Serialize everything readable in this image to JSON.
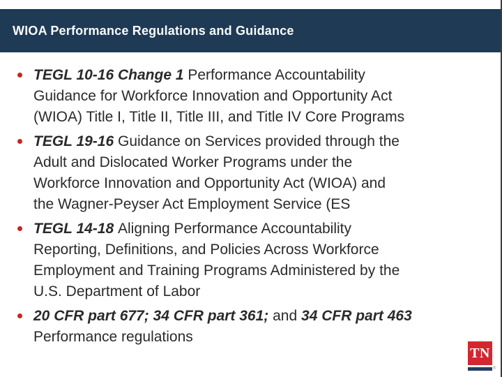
{
  "colors": {
    "header_bg": "#1f3a54",
    "header_text": "#fbfbfb",
    "body_text": "#2a2a2a",
    "bullet_dot": "#c9251f",
    "logo_red": "#d22730",
    "logo_navy": "#243e63",
    "edge_border": "#3c3c3c"
  },
  "header": {
    "title": "WIOA Performance Regulations and Guidance"
  },
  "bullets": [
    {
      "lines": [
        [
          {
            "t": "TEGL 10-16 Change 1 ",
            "em": true
          },
          {
            "t": "Performance Accountability",
            "em": false
          }
        ],
        [
          {
            "t": "Guidance for Workforce Innovation and Opportunity Act",
            "em": false
          }
        ],
        [
          {
            "t": "(WIOA) Title I, Title II, Title III, and Title IV Core Programs",
            "em": false
          }
        ]
      ]
    },
    {
      "lines": [
        [
          {
            "t": "TEGL 19-16 ",
            "em": true
          },
          {
            "t": "Guidance on Services provided through the",
            "em": false
          }
        ],
        [
          {
            "t": "Adult and Dislocated Worker Programs under the",
            "em": false
          }
        ],
        [
          {
            "t": "Workforce Innovation and Opportunity Act (WIOA) and",
            "em": false
          }
        ],
        [
          {
            "t": "the Wagner-Peyser Act Employment Service (ES",
            "em": false
          }
        ]
      ]
    },
    {
      "lines": [
        [
          {
            "t": "TEGL 14-18 ",
            "em": true
          },
          {
            "t": "Aligning Performance Accountability",
            "em": false
          }
        ],
        [
          {
            "t": "Reporting, Definitions, and Policies Across Workforce",
            "em": false
          }
        ],
        [
          {
            "t": "Employment and Training Programs Administered by the",
            "em": false
          }
        ],
        [
          {
            "t": "U.S. Department of Labor",
            "em": false
          }
        ]
      ]
    },
    {
      "lines": [
        [
          {
            "t": "20 CFR part 677; 34 CFR part 361;",
            "em": true
          },
          {
            "t": " and ",
            "em": false
          },
          {
            "t": "34 CFR part 463",
            "em": true
          }
        ],
        [
          {
            "t": "Performance regulations",
            "em": false
          }
        ]
      ]
    }
  ],
  "logo": {
    "text": "TN",
    "registered": "®"
  }
}
